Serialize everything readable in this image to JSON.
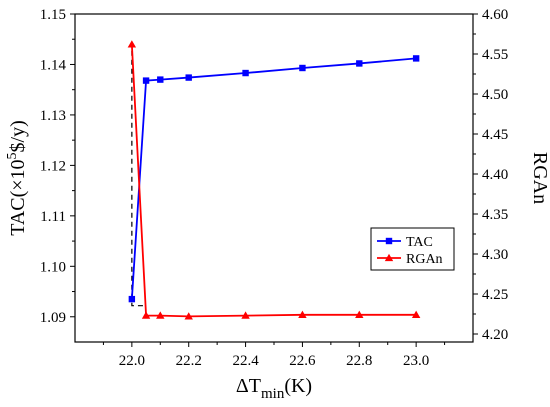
{
  "chart_data": {
    "type": "line",
    "x_axis": {
      "label_main": "ΔT",
      "label_sub": "min",
      "label_unit": "(K)",
      "range": [
        21.8,
        23.2
      ],
      "ticks": [
        22.0,
        22.2,
        22.4,
        22.6,
        22.8,
        23.0
      ],
      "tick_labels": [
        "22.0",
        "22.2",
        "22.4",
        "22.6",
        "22.8",
        "23.0"
      ]
    },
    "y_left": {
      "label_pre": "TAC(×10",
      "label_sup": "5",
      "label_post": "$/y)",
      "range": [
        1.085,
        1.15
      ],
      "ticks": [
        1.09,
        1.1,
        1.11,
        1.12,
        1.13,
        1.14,
        1.15
      ],
      "tick_labels": [
        "1.09",
        "1.10",
        "1.11",
        "1.12",
        "1.13",
        "1.14",
        "1.15"
      ]
    },
    "y_right": {
      "label": "RGAn",
      "range": [
        4.19,
        4.6
      ],
      "ticks": [
        4.2,
        4.25,
        4.3,
        4.35,
        4.4,
        4.45,
        4.5,
        4.55,
        4.6
      ],
      "tick_labels": [
        "4.20",
        "4.25",
        "4.30",
        "4.35",
        "4.40",
        "4.45",
        "4.50",
        "4.55",
        "4.60"
      ]
    },
    "series": [
      {
        "name": "TAC",
        "axis": "left",
        "color": "#0000ff",
        "marker": "square",
        "x": [
          22.0,
          22.05,
          22.1,
          22.2,
          22.4,
          22.6,
          22.8,
          23.0
        ],
        "y": [
          1.0935,
          1.1368,
          1.137,
          1.1374,
          1.1383,
          1.1393,
          1.1402,
          1.1412
        ]
      },
      {
        "name": "RGAn",
        "axis": "right",
        "color": "#ff0000",
        "marker": "triangle",
        "x": [
          22.0,
          22.05,
          22.1,
          22.2,
          22.4,
          22.6,
          22.8,
          23.0
        ],
        "y": [
          4.562,
          4.223,
          4.223,
          4.222,
          4.223,
          4.224,
          4.224,
          4.224
        ]
      }
    ],
    "annotation": {
      "type": "dashed-bracket",
      "x": 22.0,
      "y_left_top": 1.1445,
      "y_left_bottom": 1.0922,
      "x_end": 22.05,
      "color": "#000000"
    },
    "legend": {
      "placement": "bottom-right"
    },
    "grid": false
  }
}
